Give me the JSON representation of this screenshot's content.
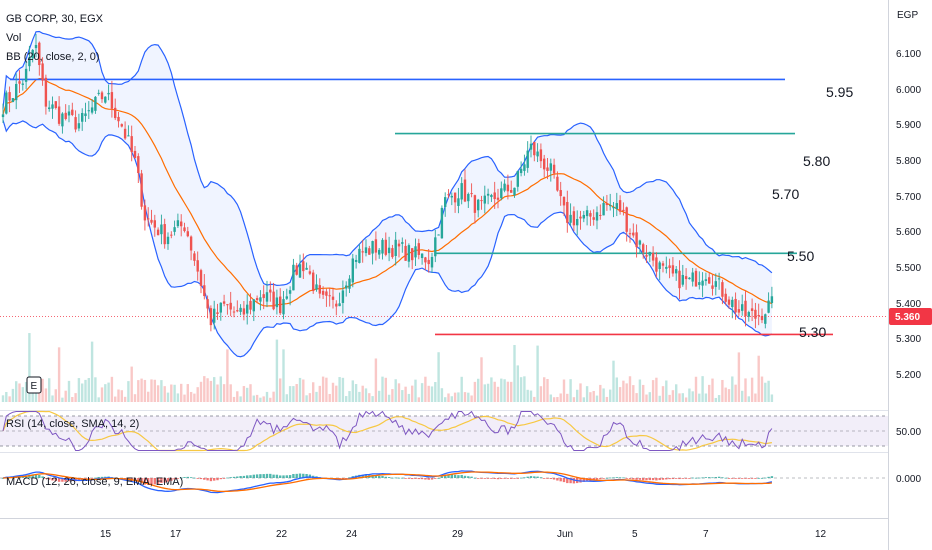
{
  "header": {
    "symbol_line": "GB CORP, 30, EGX",
    "vol_label": "Vol",
    "bb_label": "BB (20, close, 2, 0)",
    "rsi_label": "RSI (14, close, SMA, 14, 2)",
    "macd_label": "MACD (12, 26, close, 9, EMA, EMA)",
    "e_badge": "E"
  },
  "price_axis": {
    "currency": "EGP",
    "ticks": [
      "6.100",
      "6.000",
      "5.900",
      "5.800",
      "5.700",
      "5.600",
      "5.500",
      "5.400",
      "5.300",
      "5.200"
    ],
    "last_price": "5.360"
  },
  "rsi_axis": {
    "tick": "50.00"
  },
  "macd_axis": {
    "tick": "0.000"
  },
  "time_axis": {
    "labels": [
      "15",
      "17",
      "22",
      "24",
      "29",
      "Jun",
      "5",
      "7",
      "12"
    ]
  },
  "annotations": {
    "level_595": "5.95",
    "level_580": "5.80",
    "level_570": "5.70",
    "level_550": "5.50",
    "level_530": "5.30"
  },
  "colors": {
    "up": "#26a69a",
    "down": "#ef5350",
    "bb_band": "#2962ff",
    "bb_basis": "#ff6d00",
    "hline_blue": "#2962ff",
    "hline_teal": "#26a69a",
    "hline_red": "#f23645",
    "rsi_line": "#7e57c2",
    "rsi_ma": "#f7c843"
  },
  "chart_data": {
    "type": "candlestick",
    "y_range": [
      5.12,
      6.14
    ],
    "lines": [
      {
        "value": 5.955,
        "color": "#2962ff",
        "from": 10,
        "to": 785
      },
      {
        "value": 5.815,
        "color": "#26a69a",
        "from": 395,
        "to": 795
      },
      {
        "value": 5.505,
        "color": "#26a69a",
        "from": 435,
        "to": 797
      },
      {
        "value": 5.295,
        "color": "#f23645",
        "from": 435,
        "to": 833
      }
    ],
    "price_path": [
      [
        0,
        5.88
      ],
      [
        25,
        5.96
      ],
      [
        35,
        6.05
      ],
      [
        45,
        5.9
      ],
      [
        60,
        5.86
      ],
      [
        80,
        5.84
      ],
      [
        105,
        5.92
      ],
      [
        120,
        5.85
      ],
      [
        135,
        5.74
      ],
      [
        145,
        5.6
      ],
      [
        165,
        5.55
      ],
      [
        185,
        5.58
      ],
      [
        200,
        5.44
      ],
      [
        210,
        5.33
      ],
      [
        225,
        5.37
      ],
      [
        240,
        5.34
      ],
      [
        260,
        5.4
      ],
      [
        280,
        5.37
      ],
      [
        295,
        5.46
      ],
      [
        305,
        5.48
      ],
      [
        320,
        5.38
      ],
      [
        335,
        5.37
      ],
      [
        355,
        5.5
      ],
      [
        375,
        5.52
      ],
      [
        395,
        5.52
      ],
      [
        415,
        5.5
      ],
      [
        430,
        5.49
      ],
      [
        445,
        5.64
      ],
      [
        460,
        5.67
      ],
      [
        480,
        5.62
      ],
      [
        500,
        5.66
      ],
      [
        515,
        5.68
      ],
      [
        530,
        5.78
      ],
      [
        550,
        5.72
      ],
      [
        565,
        5.6
      ],
      [
        585,
        5.59
      ],
      [
        605,
        5.63
      ],
      [
        620,
        5.62
      ],
      [
        635,
        5.54
      ],
      [
        650,
        5.5
      ],
      [
        665,
        5.45
      ],
      [
        690,
        5.43
      ],
      [
        705,
        5.46
      ],
      [
        725,
        5.4
      ],
      [
        740,
        5.35
      ],
      [
        755,
        5.34
      ],
      [
        770,
        5.37
      ]
    ]
  }
}
